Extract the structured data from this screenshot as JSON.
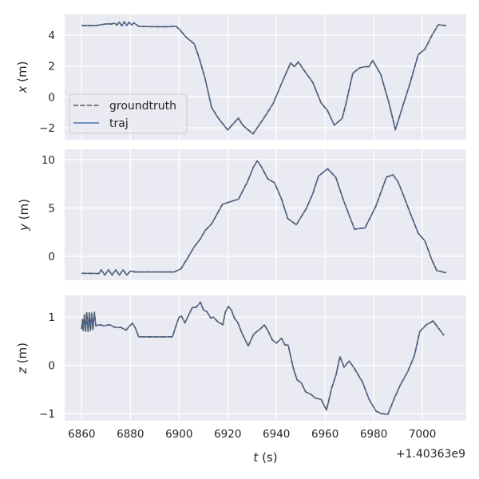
{
  "chart_data": [
    {
      "type": "line",
      "ylabel_var": "x",
      "ylabel_unit": " (m)",
      "xlim": [
        6853,
        7018
      ],
      "ylim": [
        -2.78,
        5.35
      ],
      "xticks": [
        6860,
        6880,
        6900,
        6920,
        6940,
        6960,
        6980,
        7000
      ],
      "yticks": [
        -2,
        0,
        2,
        4
      ],
      "grid": true,
      "legend": {
        "location": "center-left",
        "entries": [
          "groundtruth",
          "traj"
        ]
      },
      "t": [
        6860,
        6863,
        6866,
        6868,
        6870.5,
        6872,
        6873.5,
        6874.5,
        6875.5,
        6876.5,
        6877.5,
        6878.5,
        6879.5,
        6880.5,
        6881.5,
        6882.5,
        6883.5,
        6890,
        6896,
        6898.7,
        6900,
        6903,
        6906.3,
        6908.5,
        6910.7,
        6913.4,
        6916.2,
        6920,
        6922,
        6924.4,
        6926,
        6927.7,
        6930.4,
        6933.7,
        6936,
        6938.6,
        6942.5,
        6945.8,
        6947.4,
        6949,
        6951.8,
        6955,
        6958.3,
        6961,
        6963.8,
        6967,
        6968.5,
        6971.4,
        6974.2,
        6976.4,
        6978,
        6979.6,
        6982.9,
        6986.2,
        6988.9,
        6991.7,
        6995,
        6998.3,
        7001,
        7003.8,
        7006.5,
        7009.8
      ],
      "series": [
        {
          "name": "groundtruth",
          "style": "dashed",
          "color": "#555555",
          "values": [
            4.62,
            4.63,
            4.62,
            4.68,
            4.74,
            4.72,
            4.78,
            4.66,
            4.85,
            4.6,
            4.88,
            4.62,
            4.85,
            4.66,
            4.8,
            4.68,
            4.57,
            4.55,
            4.55,
            4.58,
            4.4,
            3.86,
            3.43,
            2.4,
            1.19,
            -0.7,
            -1.4,
            -2.15,
            -1.8,
            -1.37,
            -1.8,
            -2.05,
            -2.4,
            -1.65,
            -1.1,
            -0.45,
            1.0,
            2.19,
            1.96,
            2.27,
            1.62,
            0.93,
            -0.37,
            -0.89,
            -1.84,
            -1.4,
            -0.5,
            1.53,
            1.88,
            1.96,
            1.95,
            2.36,
            1.45,
            -0.37,
            -2.13,
            -0.72,
            0.93,
            2.74,
            3.08,
            3.95,
            4.67,
            4.62
          ]
        },
        {
          "name": "traj",
          "style": "solid",
          "color": "#4c72b0",
          "values": [
            4.62,
            4.63,
            4.62,
            4.68,
            4.74,
            4.72,
            4.78,
            4.66,
            4.85,
            4.6,
            4.88,
            4.62,
            4.85,
            4.66,
            4.8,
            4.68,
            4.57,
            4.55,
            4.55,
            4.58,
            4.4,
            3.86,
            3.43,
            2.4,
            1.19,
            -0.7,
            -1.4,
            -2.15,
            -1.8,
            -1.37,
            -1.8,
            -2.05,
            -2.4,
            -1.65,
            -1.1,
            -0.45,
            1.0,
            2.19,
            1.96,
            2.27,
            1.62,
            0.93,
            -0.37,
            -0.89,
            -1.84,
            -1.4,
            -0.5,
            1.53,
            1.88,
            1.96,
            1.95,
            2.36,
            1.45,
            -0.37,
            -2.13,
            -0.72,
            0.93,
            2.74,
            3.08,
            3.95,
            4.67,
            4.62
          ]
        }
      ]
    },
    {
      "type": "line",
      "ylabel_var": "y",
      "ylabel_unit": " (m)",
      "xlim": [
        6853,
        7018
      ],
      "ylim": [
        -2.48,
        11.07
      ],
      "xticks": [
        6860,
        6880,
        6900,
        6920,
        6940,
        6960,
        6980,
        7000
      ],
      "yticks": [
        0,
        5,
        10
      ],
      "grid": true,
      "t": [
        6860,
        6866,
        6867,
        6868,
        6869.5,
        6871,
        6872.5,
        6874,
        6875.5,
        6877,
        6878.5,
        6880,
        6882,
        6898,
        6900.8,
        6903.5,
        6906.3,
        6908.5,
        6910.7,
        6913.4,
        6915.5,
        6917.8,
        6921.6,
        6924.4,
        6928.2,
        6930.5,
        6932.1,
        6934,
        6936.4,
        6939.2,
        6942,
        6944.7,
        6948.2,
        6952.4,
        6955,
        6957.3,
        6961.1,
        6964.4,
        6967.7,
        6972.1,
        6976.4,
        6980.8,
        6985.2,
        6987.9,
        6990,
        6992.3,
        6995,
        6998.3,
        7001,
        7003.8,
        7005.9,
        7009.8
      ],
      "series": [
        {
          "name": "groundtruth",
          "style": "dashed",
          "color": "#555555",
          "values": [
            -1.76,
            -1.78,
            -1.8,
            -1.4,
            -1.95,
            -1.4,
            -1.95,
            -1.4,
            -1.95,
            -1.4,
            -1.95,
            -1.55,
            -1.63,
            -1.63,
            -1.3,
            -0.2,
            1.0,
            1.7,
            2.66,
            3.35,
            4.3,
            5.36,
            5.69,
            5.91,
            7.75,
            9.2,
            9.88,
            9.2,
            8.03,
            7.62,
            6.0,
            3.9,
            3.26,
            5.0,
            6.5,
            8.3,
            9.05,
            8.17,
            5.69,
            2.8,
            2.93,
            5.14,
            8.17,
            8.45,
            7.7,
            6.24,
            4.45,
            2.38,
            1.6,
            -0.33,
            -1.49,
            -1.71
          ]
        },
        {
          "name": "traj",
          "style": "solid",
          "color": "#4c72b0",
          "values": [
            -1.76,
            -1.78,
            -1.8,
            -1.4,
            -1.95,
            -1.4,
            -1.95,
            -1.4,
            -1.95,
            -1.4,
            -1.95,
            -1.55,
            -1.63,
            -1.63,
            -1.3,
            -0.2,
            1.0,
            1.7,
            2.66,
            3.35,
            4.3,
            5.36,
            5.69,
            5.91,
            7.75,
            9.2,
            9.88,
            9.2,
            8.03,
            7.62,
            6.0,
            3.9,
            3.26,
            5.0,
            6.5,
            8.3,
            9.05,
            8.17,
            5.69,
            2.8,
            2.93,
            5.14,
            8.17,
            8.45,
            7.7,
            6.24,
            4.45,
            2.38,
            1.6,
            -0.33,
            -1.49,
            -1.71
          ]
        }
      ]
    },
    {
      "type": "line",
      "ylabel_var": "z",
      "ylabel_unit": " (m)",
      "xlabel_var": "t",
      "xlabel_unit": " (s)",
      "x_offset": "+1.40363e9",
      "xlim": [
        6853,
        7018
      ],
      "ylim": [
        -1.15,
        1.45
      ],
      "xticks": [
        6860,
        6880,
        6900,
        6920,
        6940,
        6960,
        6980,
        7000
      ],
      "yticks": [
        -1,
        0,
        1
      ],
      "grid": true,
      "t": [
        6860,
        6860.3,
        6860.6,
        6861.1,
        6861.6,
        6862.1,
        6862.6,
        6863.1,
        6863.6,
        6864.1,
        6864.6,
        6865.2,
        6865.8,
        6867.3,
        6869,
        6871.6,
        6873,
        6874.9,
        6876,
        6878.2,
        6880,
        6880.9,
        6882,
        6883.4,
        6897.3,
        6898.5,
        6900,
        6901,
        6902.4,
        6904,
        6905.5,
        6907,
        6908.8,
        6910,
        6911.5,
        6913,
        6914.2,
        6915,
        6916,
        6918,
        6919,
        6920.2,
        6921.5,
        6922.7,
        6924.1,
        6926,
        6928.4,
        6930.6,
        6932,
        6933.5,
        6935,
        6936.5,
        6938.3,
        6940,
        6942.1,
        6943.5,
        6944.8,
        6947,
        6948.5,
        6950.3,
        6952,
        6954.1,
        6956,
        6958.4,
        6960.6,
        6962.8,
        6964.5,
        6966.1,
        6967.8,
        6969.9,
        6972.1,
        6975.4,
        6978.1,
        6980.9,
        6983,
        6985.8,
        6988.5,
        6991,
        6994,
        6996.7,
        6998.9,
        7001.6,
        7004.4,
        7006,
        7008.8
      ],
      "series": [
        {
          "name": "groundtruth",
          "style": "dashed",
          "color": "#555555",
          "values": [
            0.75,
            0.95,
            0.72,
            1.05,
            0.7,
            1.09,
            0.7,
            1.09,
            0.72,
            1.08,
            0.74,
            1.1,
            0.82,
            0.84,
            0.82,
            0.84,
            0.8,
            0.78,
            0.79,
            0.73,
            0.83,
            0.87,
            0.78,
            0.59,
            0.59,
            0.78,
            1.0,
            1.02,
            0.88,
            1.05,
            1.2,
            1.2,
            1.31,
            1.15,
            1.11,
            0.98,
            1.0,
            0.95,
            0.9,
            0.84,
            1.1,
            1.22,
            1.15,
            0.98,
            0.89,
            0.65,
            0.4,
            0.64,
            0.7,
            0.76,
            0.84,
            0.72,
            0.53,
            0.46,
            0.56,
            0.42,
            0.42,
            -0.07,
            -0.3,
            -0.37,
            -0.55,
            -0.6,
            -0.68,
            -0.71,
            -0.93,
            -0.46,
            -0.2,
            0.18,
            -0.04,
            0.09,
            -0.07,
            -0.35,
            -0.71,
            -0.95,
            -1.0,
            -1.02,
            -0.68,
            -0.4,
            -0.13,
            0.2,
            0.7,
            0.84,
            0.92,
            0.81,
            0.62
          ]
        },
        {
          "name": "traj",
          "style": "solid",
          "color": "#4c72b0",
          "values": [
            0.75,
            0.95,
            0.72,
            1.05,
            0.7,
            1.09,
            0.7,
            1.09,
            0.72,
            1.08,
            0.74,
            1.1,
            0.82,
            0.84,
            0.82,
            0.84,
            0.8,
            0.78,
            0.79,
            0.73,
            0.83,
            0.87,
            0.78,
            0.59,
            0.59,
            0.78,
            1.0,
            1.02,
            0.88,
            1.05,
            1.2,
            1.2,
            1.31,
            1.15,
            1.11,
            0.98,
            1.0,
            0.95,
            0.9,
            0.84,
            1.1,
            1.22,
            1.15,
            0.98,
            0.89,
            0.65,
            0.4,
            0.64,
            0.7,
            0.76,
            0.84,
            0.72,
            0.53,
            0.46,
            0.56,
            0.42,
            0.42,
            -0.07,
            -0.3,
            -0.37,
            -0.55,
            -0.6,
            -0.68,
            -0.71,
            -0.93,
            -0.46,
            -0.2,
            0.18,
            -0.04,
            0.09,
            -0.07,
            -0.35,
            -0.71,
            -0.95,
            -1.0,
            -1.02,
            -0.68,
            -0.4,
            -0.13,
            0.2,
            0.7,
            0.84,
            0.92,
            0.81,
            0.62
          ]
        }
      ]
    }
  ],
  "colors": {
    "background": "#eaeaf2",
    "grid": "#ffffff",
    "text": "#262626"
  }
}
